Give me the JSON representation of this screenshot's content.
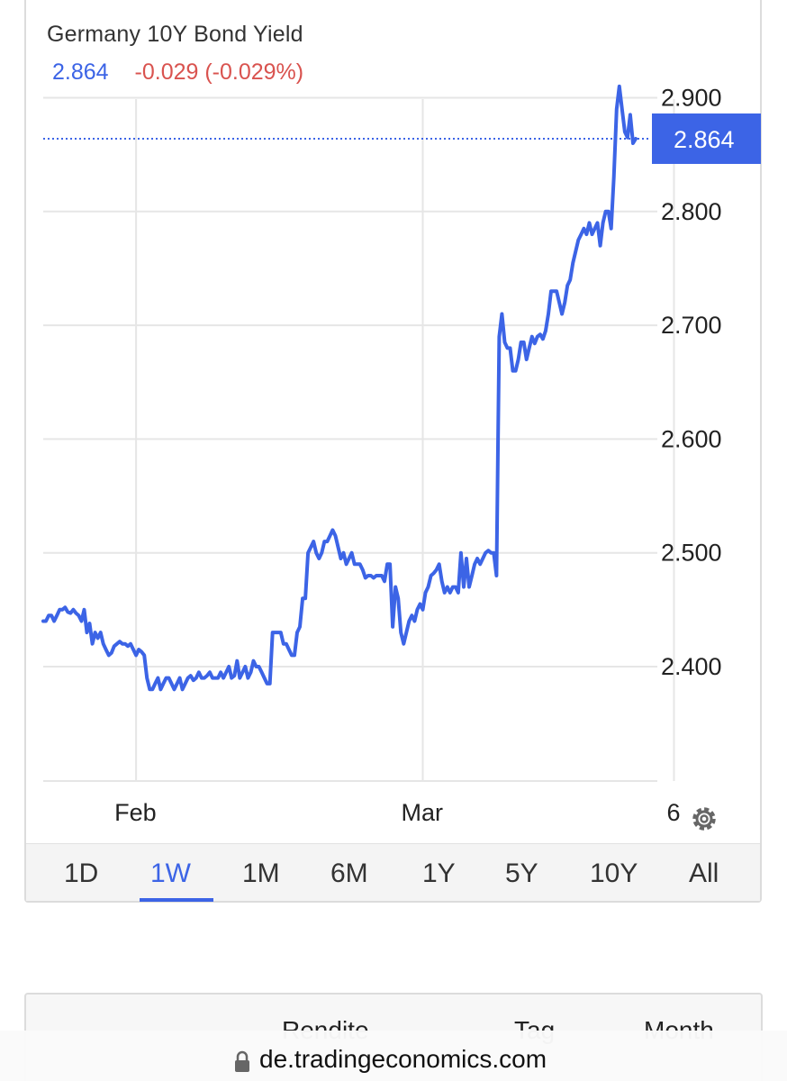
{
  "chart_header": {
    "title": "Germany 10Y Bond Yield",
    "price": "2.864",
    "change": "-0.029 (-0.029%)"
  },
  "colors": {
    "line": "#3c64e6",
    "positive_price": "#3c64e6",
    "negative_change": "#d9534f",
    "grid": "#e6e6e6",
    "active_tab": "#3c64e6"
  },
  "chart_data": {
    "type": "line",
    "title": "Germany 10Y Bond Yield",
    "xlabel": "",
    "ylabel": "",
    "ylim": [
      2.3,
      2.92
    ],
    "y_ticks": [
      2.4,
      2.5,
      2.6,
      2.7,
      2.8,
      2.9
    ],
    "y_tick_labels": [
      "2.400",
      "2.500",
      "2.600",
      "2.700",
      "2.800",
      "2.900"
    ],
    "x_tick_labels": [
      "Feb",
      "Mar",
      "6"
    ],
    "x_ticks_index": [
      34,
      139,
      231
    ],
    "last_value_label": "2.864",
    "grid": true,
    "series": [
      {
        "values": [
          2.44,
          2.44,
          2.445,
          2.445,
          2.44,
          2.445,
          2.45,
          2.45,
          2.452,
          2.448,
          2.447,
          2.45,
          2.447,
          2.445,
          2.44,
          2.45,
          2.43,
          2.438,
          2.42,
          2.43,
          2.425,
          2.43,
          2.42,
          2.415,
          2.41,
          2.412,
          2.418,
          2.42,
          2.422,
          2.42,
          2.42,
          2.418,
          2.42,
          2.415,
          2.41,
          2.415,
          2.413,
          2.41,
          2.39,
          2.38,
          2.38,
          2.385,
          2.39,
          2.38,
          2.385,
          2.39,
          2.39,
          2.385,
          2.38,
          2.385,
          2.39,
          2.38,
          2.385,
          2.39,
          2.392,
          2.388,
          2.39,
          2.395,
          2.39,
          2.39,
          2.392,
          2.395,
          2.39,
          2.39,
          2.39,
          2.395,
          2.39,
          2.395,
          2.4,
          2.39,
          2.392,
          2.405,
          2.39,
          2.395,
          2.4,
          2.39,
          2.395,
          2.405,
          2.4,
          2.4,
          2.395,
          2.39,
          2.385,
          2.385,
          2.43,
          2.43,
          2.43,
          2.43,
          2.42,
          2.42,
          2.415,
          2.41,
          2.41,
          2.43,
          2.435,
          2.46,
          2.46,
          2.5,
          2.505,
          2.51,
          2.5,
          2.495,
          2.5,
          2.51,
          2.51,
          2.515,
          2.52,
          2.515,
          2.505,
          2.495,
          2.5,
          2.49,
          2.495,
          2.5,
          2.49,
          2.49,
          2.49,
          2.485,
          2.478,
          2.48,
          2.48,
          2.478,
          2.48,
          2.48,
          2.48,
          2.475,
          2.49,
          2.49,
          2.435,
          2.47,
          2.46,
          2.43,
          2.42,
          2.43,
          2.44,
          2.445,
          2.44,
          2.45,
          2.455,
          2.45,
          2.465,
          2.47,
          2.48,
          2.482,
          2.485,
          2.49,
          2.475,
          2.465,
          2.47,
          2.465,
          2.47,
          2.47,
          2.465,
          2.5,
          2.47,
          2.495,
          2.47,
          2.48,
          2.49,
          2.495,
          2.49,
          2.495,
          2.5,
          2.502,
          2.5,
          2.5,
          2.48,
          2.69,
          2.71,
          2.685,
          2.68,
          2.68,
          2.66,
          2.66,
          2.67,
          2.685,
          2.685,
          2.67,
          2.68,
          2.69,
          2.684,
          2.69,
          2.692,
          2.688,
          2.695,
          2.71,
          2.73,
          2.73,
          2.73,
          2.72,
          2.71,
          2.72,
          2.735,
          2.74,
          2.755,
          2.765,
          2.775,
          2.78,
          2.785,
          2.78,
          2.79,
          2.78,
          2.785,
          2.79,
          2.77,
          2.79,
          2.8,
          2.8,
          2.785,
          2.83,
          2.89,
          2.91,
          2.89,
          2.87,
          2.865,
          2.885,
          2.86,
          2.864
        ]
      }
    ]
  },
  "x_axis": {
    "feb": "Feb",
    "mar": "Mar",
    "day": "6"
  },
  "icons": {
    "settings": "gear-icon"
  },
  "timeframes": [
    "1D",
    "1W",
    "1M",
    "6M",
    "1Y",
    "5Y",
    "10Y",
    "All"
  ],
  "active_timeframe": "1W",
  "table_header": {
    "col1": "Rendite",
    "col2": "Tag",
    "col3": "Month"
  },
  "browser": {
    "url": "de.tradingeconomics.com"
  }
}
